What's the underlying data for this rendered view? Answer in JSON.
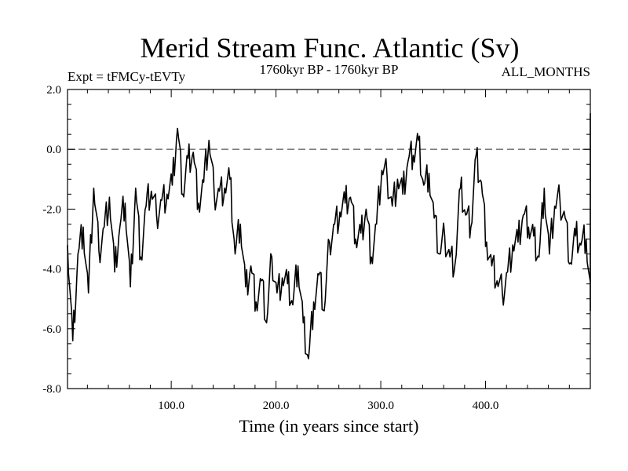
{
  "chart_data": {
    "type": "line",
    "title": "Merid Stream Func. Atlantic (Sv)",
    "subtitle_left": "Expt = tFMCy-tEVTy",
    "subtitle_center": "1760kyr BP - 1760kyr BP",
    "subtitle_right": "ALL_MONTHS",
    "xlabel": "Time (in years since start)",
    "ylabel": "",
    "xlim": [
      1,
      500
    ],
    "ylim": [
      -8,
      2
    ],
    "x_ticks": [
      100,
      200,
      300,
      400
    ],
    "x_tick_labels": [
      "100.0",
      "200.0",
      "300.0",
      "400.0"
    ],
    "y_ticks": [
      2,
      0,
      -2,
      -4,
      -6,
      -8
    ],
    "y_tick_labels": [
      "2.0",
      "0.0",
      "-2.0",
      "-4.0",
      "-6.0",
      "-8.0"
    ],
    "reference_line": {
      "y": 0,
      "style": "dashed"
    },
    "series": [
      {
        "name": "Merid Stream Func. Atlantic",
        "x_start": 1,
        "x_step": 5,
        "values": [
          -3.2,
          -6.4,
          -3.5,
          -2.6,
          -4.8,
          -1.3,
          -3.4,
          -2.6,
          -1.6,
          -4.1,
          -2.6,
          -1.8,
          -4.6,
          -1.3,
          -3.6,
          -1.9,
          -1.4,
          -2.2,
          -1.7,
          -1.5,
          -1.2,
          0.7,
          -1.5,
          -0.3,
          -0.1,
          -1.8,
          -1.1,
          0.3,
          -1.5,
          -1.4,
          -1.3,
          -1.0,
          -3.5,
          -2.5,
          -4.6,
          -3.9,
          -5.1,
          -4.4,
          -5.8,
          -3.6,
          -4.8,
          -4.3,
          -4.5,
          -5.2,
          -3.9,
          -5.8,
          -7.0,
          -5.1,
          -4.2,
          -5.4,
          -3.1,
          -2.5,
          -2.1,
          -1.8,
          -1.6,
          -3.0,
          -2.8,
          -2.0,
          -3.6,
          -2.5,
          -0.7,
          -0.9,
          -1.9,
          -1.0,
          -1.5,
          -0.4,
          -0.2,
          0.3,
          -1.2,
          -0.8,
          -2.3,
          -3.5,
          -2.9,
          -3.6,
          -3.8,
          -1.3,
          -2.2,
          -2.6,
          -0.2,
          -1.1,
          -3.1,
          -3.9,
          -4.4,
          -4.8,
          -4.1,
          -3.2,
          -3.1,
          -2.2,
          -2.6,
          -2.9,
          -3.6,
          -1.3,
          -3.5,
          -1.9,
          -1.7,
          -2.3,
          -3.8,
          -2.9,
          -3.2,
          -3.0,
          -5.2,
          -4.3,
          -4.1,
          -3.4,
          -2.8,
          -2.3,
          -2.0,
          -2.1,
          -2.3,
          -2.5,
          -1.6,
          -2.6,
          -1.9,
          -1.2,
          -2.4,
          -1.3,
          -2.0,
          -1.7,
          -1.6,
          -2.7,
          -2.2,
          -2.8,
          -1.2,
          -2.4,
          -1.9,
          -3.1,
          -3.0,
          -2.4,
          -3.7,
          -2.9,
          -2.5,
          -1.9,
          -2.9,
          -1.4,
          -1.6,
          -2.6,
          -1.9,
          -0.5,
          -1.0,
          -1.4,
          0.5,
          -2.3,
          -1.6,
          -1.2,
          -3.3,
          -2.3,
          -1.4,
          -1.8,
          1.2,
          -1.1,
          -1.9,
          -2.7,
          -2.5,
          -1.9,
          -0.9,
          -3.8,
          -2.5,
          -2.1,
          -2.3,
          -1.3,
          -1.6,
          -1.8,
          -0.2,
          -1.3,
          -0.7,
          -0.9,
          -1.5,
          -3.0,
          -2.5,
          -1.8,
          -1.2,
          -1.4,
          0.5,
          -1.3,
          -2.1,
          -2.1,
          -2.2,
          -2.3,
          -2.8,
          -1.5,
          -2.2,
          -2.7,
          -3.7,
          -2.5,
          -1.7,
          -1.6,
          -2.4,
          -0.9,
          -1.3,
          0.8,
          -1.7,
          -1.5,
          -1.6,
          -1.9,
          -1.0,
          -3.4,
          -2.5,
          -3.2,
          -3.8,
          -4.4,
          -2.0,
          -4.2,
          -1.6,
          -2.4,
          -4.7,
          -2.3,
          -4.2,
          -1.2,
          -2.6,
          -3.0,
          -2.5,
          -3.0,
          -3.3,
          -2.7,
          -2.2,
          -0.9,
          -2.1,
          -4.4,
          -3.0,
          -2.0,
          -1.9,
          -1.1,
          -2.8,
          -2.2,
          -2.2,
          -1.7,
          -2.6,
          -2.4,
          -3.1,
          -2.5,
          -2.5,
          -2.1,
          -1.9,
          -1.8,
          -2.6,
          -0.5,
          -3.6,
          -2.7,
          -3.0,
          -3.3,
          -2.4,
          -2.0,
          -1.4,
          -2.3,
          -0.3,
          -1.1,
          -1.4,
          0.8,
          -0.4,
          -1.3,
          -1.0,
          -1.6
        ]
      }
    ]
  }
}
